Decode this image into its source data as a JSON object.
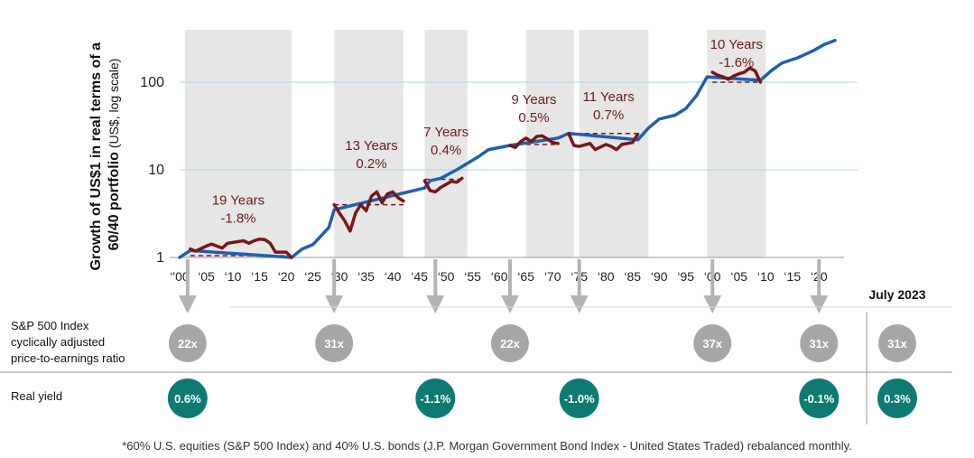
{
  "chart_data": {
    "type": "line",
    "ylabel_line1": "Growth of US$1 in real terms of a",
    "ylabel_line2_bold": "60/40 portfolio",
    "ylabel_line2_light": " (US$, log scale)",
    "y_ticks": [
      "1",
      "10",
      "100"
    ],
    "x_ticks": [
      "‘'00",
      "‘05",
      "‘10",
      "‘15",
      "‘20",
      "‘25",
      "‘30",
      "‘35",
      "‘40",
      "‘45",
      "‘50",
      "‘55",
      "‘60",
      "‘65",
      "‘70",
      "‘75",
      "‘80",
      "‘85",
      "‘90",
      "‘95",
      "‘00",
      "‘05",
      "‘10",
      "‘15",
      "‘20"
    ],
    "colors": {
      "growth": "#1f5fb3",
      "drawdown": "#7a1717",
      "shade": "#e6e6e6",
      "grid": "#a8d8ea",
      "pe_badge": "#a6a6a6",
      "yield_badge": "#0e7a72"
    },
    "shaded_periods": [
      [
        1901,
        1921
      ],
      [
        1929,
        1942
      ],
      [
        1946,
        1954
      ],
      [
        1965,
        1974
      ],
      [
        1975,
        1988
      ],
      [
        1999,
        2010
      ]
    ],
    "annotations": [
      {
        "years": "19 Years",
        "ret": "-1.8%",
        "x": 1911,
        "y": 2.5
      },
      {
        "years": "13 Years",
        "ret": "0.2%",
        "x": 1936,
        "y": 10.5
      },
      {
        "years": "7 Years",
        "ret": "0.4%",
        "x": 1950,
        "y": 15
      },
      {
        "years": "9 Years",
        "ret": "0.5%",
        "x": 1966.5,
        "y": 35
      },
      {
        "years": "11 Years",
        "ret": "0.7%",
        "x": 1980.5,
        "y": 38
      },
      {
        "years": "10 Years",
        "ret": "-1.6%",
        "x": 2004.5,
        "y": 150
      }
    ],
    "series": [
      {
        "kind": "growth",
        "x": [
          1900,
          1902,
          1921,
          1923,
          1925,
          1928,
          1929,
          1946,
          1947,
          1949,
          1952,
          1956,
          1958,
          1962,
          1971,
          1973,
          1986,
          1988,
          1990,
          1993,
          1995,
          1997,
          1999,
          2009,
          2011,
          2013,
          2016,
          2019,
          2021,
          2023
        ],
        "y": [
          1.0,
          1.2,
          1.0,
          1.25,
          1.4,
          2.2,
          3.5,
          6.2,
          7.5,
          8.0,
          10.0,
          14.0,
          17.0,
          19.0,
          23.0,
          26.0,
          22.0,
          30.0,
          38.0,
          42.0,
          50.0,
          70.0,
          115.0,
          105.0,
          135.0,
          165.0,
          190.0,
          230.0,
          270.0,
          300.0
        ]
      },
      {
        "kind": "drawdown",
        "x": [
          1902,
          1903,
          1905,
          1906,
          1908,
          1909,
          1912,
          1913,
          1914,
          1915,
          1916,
          1917,
          1918,
          1920,
          1921
        ],
        "y": [
          1.25,
          1.18,
          1.35,
          1.42,
          1.28,
          1.45,
          1.55,
          1.45,
          1.55,
          1.62,
          1.6,
          1.45,
          1.15,
          1.15,
          1.0
        ]
      },
      {
        "kind": "drawdown",
        "x": [
          1929,
          1930,
          1931,
          1932,
          1933,
          1934,
          1935,
          1936,
          1937,
          1938,
          1939,
          1940,
          1941,
          1942
        ],
        "y": [
          4.0,
          3.2,
          2.6,
          2.0,
          3.2,
          4.0,
          3.4,
          5.0,
          5.6,
          4.2,
          5.3,
          5.6,
          4.8,
          4.4
        ]
      },
      {
        "kind": "drawdown",
        "x": [
          1946,
          1947,
          1948,
          1949,
          1950,
          1951,
          1952,
          1953
        ],
        "y": [
          7.5,
          5.8,
          5.6,
          6.3,
          6.8,
          7.4,
          7.2,
          8.0
        ]
      },
      {
        "kind": "drawdown",
        "x": [
          1962,
          1963,
          1964,
          1965,
          1966,
          1967,
          1968,
          1969,
          1970,
          1971
        ],
        "y": [
          19.0,
          18.0,
          21.0,
          23.0,
          21.0,
          24.0,
          24.5,
          22.5,
          20.5,
          20.0
        ]
      },
      {
        "kind": "drawdown",
        "x": [
          1973,
          1974,
          1975,
          1977,
          1978,
          1980,
          1981,
          1982,
          1983,
          1984,
          1985,
          1986
        ],
        "y": [
          26.0,
          19.0,
          18.5,
          20.0,
          17.0,
          19.5,
          18.5,
          17.0,
          19.5,
          20.0,
          20.5,
          25.5
        ]
      },
      {
        "kind": "drawdown",
        "x": [
          2000,
          2001,
          2002,
          2003,
          2004,
          2005,
          2006,
          2007,
          2008,
          2009
        ],
        "y": [
          130.0,
          120.0,
          115.0,
          108.0,
          118.0,
          125.0,
          130.0,
          145.0,
          135.0,
          100.0
        ]
      }
    ],
    "dashed_levels": [
      {
        "x": [
          1902,
          1920
        ],
        "y": 1.05
      },
      {
        "x": [
          1929,
          1942
        ],
        "y": 4.0
      },
      {
        "x": [
          1946,
          1953
        ],
        "y": 7.8
      },
      {
        "x": [
          1962,
          1971
        ],
        "y": 19.5
      },
      {
        "x": [
          1973,
          1986
        ],
        "y": 26.0
      },
      {
        "x": [
          2000,
          2009
        ],
        "y": 100.0
      }
    ]
  },
  "table": {
    "date_label": "July 2023",
    "pe_label_lines": [
      "S&P 500 Index",
      "cyclically adjusted",
      "price-to-earnings ratio"
    ],
    "yield_label": "Real yield",
    "arrow_years": [
      1901.5,
      1929,
      1948,
      1962,
      1975,
      2000,
      2020
    ],
    "pe_badges": [
      {
        "x": 1901.5,
        "text": "22x"
      },
      {
        "x": 1929,
        "text": "31x"
      },
      {
        "x": 1962,
        "text": "22x"
      },
      {
        "x": 2000,
        "text": "37x"
      },
      {
        "x": 2020,
        "text": "31x"
      },
      {
        "x": "current",
        "text": "31x"
      }
    ],
    "yield_badges": [
      {
        "x": 1901.5,
        "text": "0.6%"
      },
      {
        "x": 1948,
        "text": "-1.1%"
      },
      {
        "x": 1975,
        "text": "-1.0%"
      },
      {
        "x": 2020,
        "text": "-0.1%"
      },
      {
        "x": "current",
        "text": "0.3%"
      }
    ]
  },
  "footnote": "*60% U.S. equities (S&P 500 Index) and 40% U.S. bonds (J.P. Morgan Government Bond Index - United States Traded) rebalanced monthly."
}
